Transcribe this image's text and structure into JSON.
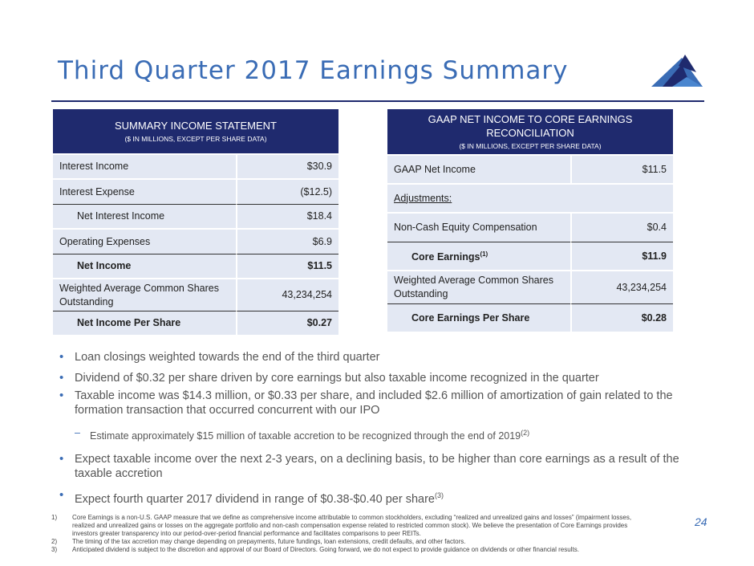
{
  "title": "Third Quarter 2017 Earnings Summary",
  "colors": {
    "navy": "#1f2a6e",
    "accent_blue": "#3a6cb5",
    "cell_bg": "#e3e8f3"
  },
  "logo": {
    "icon": "mountain-logo-icon"
  },
  "table1": {
    "header_title": "SUMMARY INCOME STATEMENT",
    "header_sub": "($ IN MILLIONS, EXCEPT PER SHARE DATA)",
    "rows": [
      {
        "label": "Interest Income",
        "value": "$30.9"
      },
      {
        "label": "Interest Expense",
        "value": "($12.5)"
      },
      {
        "label": "Net Interest Income",
        "value": "$18.4"
      },
      {
        "label": "Operating Expenses",
        "value": "$6.9"
      },
      {
        "label": "Net Income",
        "value": "$11.5"
      },
      {
        "label": "Weighted Average Common Shares Outstanding",
        "value": "43,234,254"
      },
      {
        "label": "Net Income Per Share",
        "value": "$0.27"
      }
    ]
  },
  "table2": {
    "header_title": "GAAP NET INCOME TO CORE EARNINGS RECONCILIATION",
    "header_sub": "($ IN MILLIONS, EXCEPT PER SHARE DATA)",
    "rows": [
      {
        "label": "GAAP Net Income",
        "value": "$11.5"
      },
      {
        "label": "Adjustments:",
        "value": ""
      },
      {
        "label": "Non-Cash Equity Compensation",
        "value": "$0.4"
      },
      {
        "label": "Core Earnings",
        "sup": "(1)",
        "value": "$11.9"
      },
      {
        "label": "Weighted Average Common Shares Outstanding",
        "value": "43,234,254"
      },
      {
        "label": "Core Earnings Per Share",
        "value": "$0.28"
      }
    ]
  },
  "bullets": [
    {
      "text": "Loan closings weighted towards the end of the third quarter"
    },
    {
      "text": "Dividend of $0.32 per share driven by core earnings but also taxable income recognized in the quarter"
    },
    {
      "text": "Taxable income was $14.3 million, or $0.33 per share, and included $2.6 million of amortization of  gain related to the formation transaction that occurred concurrent with our IPO"
    },
    {
      "text": "Estimate approximately $15 million of taxable accretion to be recognized through the end of 2019",
      "sup": "(2)"
    },
    {
      "text": "Expect taxable income over the next 2-3 years, on a declining basis, to be higher than core earnings as a result of the taxable accretion"
    },
    {
      "text": "Expect fourth quarter 2017 dividend in range of $0.38-$0.40 per share",
      "sup": "(3)"
    }
  ],
  "bullet_marker": "•",
  "sub_marker": "–",
  "page_number": "24",
  "footnotes": [
    {
      "num": "1)",
      "text": "Core Earnings is a non-U.S. GAAP measure that we define as comprehensive income attributable to common stockholders, excluding “realized and unrealized gains and losses” (impairment losses, realized and unrealized gains or losses on the aggregate portfolio and non-cash compensation expense related to restricted common stock). We believe the presentation of Core Earnings provides investors greater transparency into our period-over-period financial performance and facilitates comparisons to peer REITs."
    },
    {
      "num": "2)",
      "text": "The timing of the tax accretion may change depending on prepayments, future fundings, loan extensions, credit defaults, and other factors."
    },
    {
      "num": "3)",
      "text": "Anticipated dividend is subject to the discretion and approval of our Board of Directors.  Going forward, we do not expect to provide guidance on dividends or other financial results."
    }
  ]
}
